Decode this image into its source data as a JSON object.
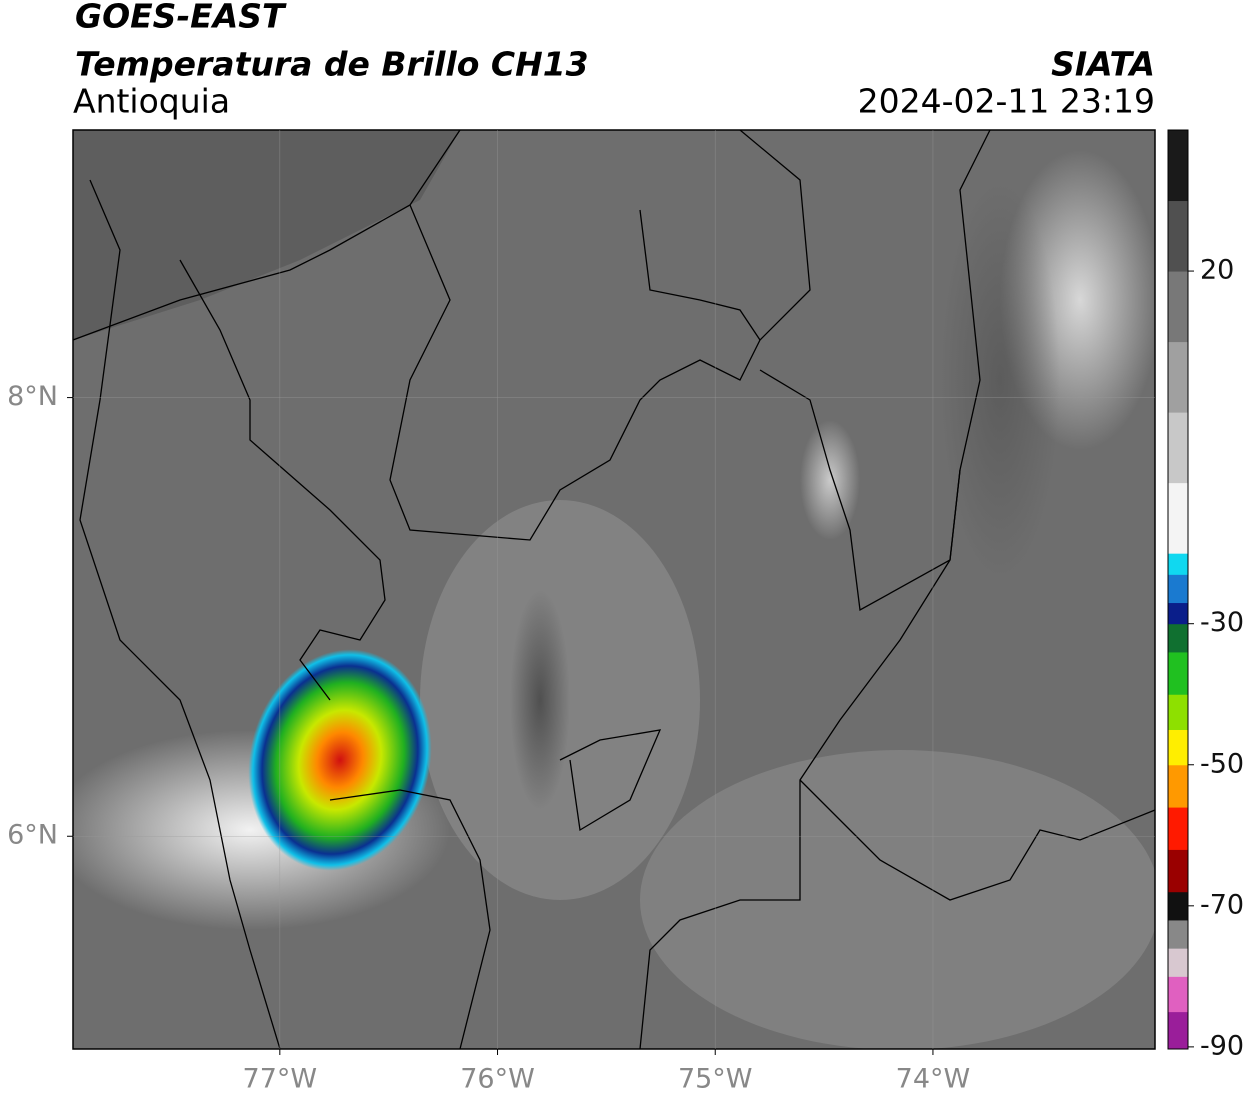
{
  "header": {
    "satellite": "GOES-EAST",
    "product": "Temperatura de Brillo CH13",
    "region": "Antioquia",
    "agency": "SIATA",
    "timestamp": "2024-02-11 23:19"
  },
  "map": {
    "xlim": [
      -77.95,
      -72.98
    ],
    "ylim": [
      5.03,
      9.22
    ],
    "xticks": [
      {
        "value": -77,
        "label": "77°W"
      },
      {
        "value": -76,
        "label": "76°W"
      },
      {
        "value": -75,
        "label": "75°W"
      },
      {
        "value": -74,
        "label": "74°W"
      }
    ],
    "yticks": [
      {
        "value": 6,
        "label": "6°N"
      },
      {
        "value": 8,
        "label": "8°N"
      }
    ]
  },
  "colorbar": {
    "clim": [
      -90.3,
      40
    ],
    "ticks": [
      20,
      -30,
      -50,
      -70,
      -90
    ],
    "bands": [
      {
        "from": -90.3,
        "to": -85,
        "color": "#9a1e9a"
      },
      {
        "from": -85,
        "to": -80,
        "color": "#e060c0"
      },
      {
        "from": -80,
        "to": -76,
        "color": "#d8c8d0"
      },
      {
        "from": -76,
        "to": -72,
        "color": "#888888"
      },
      {
        "from": -72,
        "to": -68,
        "color": "#111111"
      },
      {
        "from": -68,
        "to": -62,
        "color": "#9a0000"
      },
      {
        "from": -62,
        "to": -56,
        "color": "#ff1a00"
      },
      {
        "from": -56,
        "to": -50,
        "color": "#ff9900"
      },
      {
        "from": -50,
        "to": -45,
        "color": "#ffee00"
      },
      {
        "from": -45,
        "to": -40,
        "color": "#8ee000"
      },
      {
        "from": -40,
        "to": -34,
        "color": "#20c020"
      },
      {
        "from": -34,
        "to": -30,
        "color": "#107030"
      },
      {
        "from": -30,
        "to": -27,
        "color": "#0a1e8a"
      },
      {
        "from": -27,
        "to": -23,
        "color": "#1a7ad0"
      },
      {
        "from": -23,
        "to": -20,
        "color": "#10d8f0"
      },
      {
        "from": -20,
        "to": -10,
        "color": "#f4f4f4"
      },
      {
        "from": -10,
        "to": 0,
        "color": "#c8c8c8"
      },
      {
        "from": 0,
        "to": 10,
        "color": "#a0a0a0"
      },
      {
        "from": 10,
        "to": 20,
        "color": "#787878"
      },
      {
        "from": 20,
        "to": 30,
        "color": "#505050"
      },
      {
        "from": 30,
        "to": 40,
        "color": "#1a1a1a"
      }
    ]
  }
}
